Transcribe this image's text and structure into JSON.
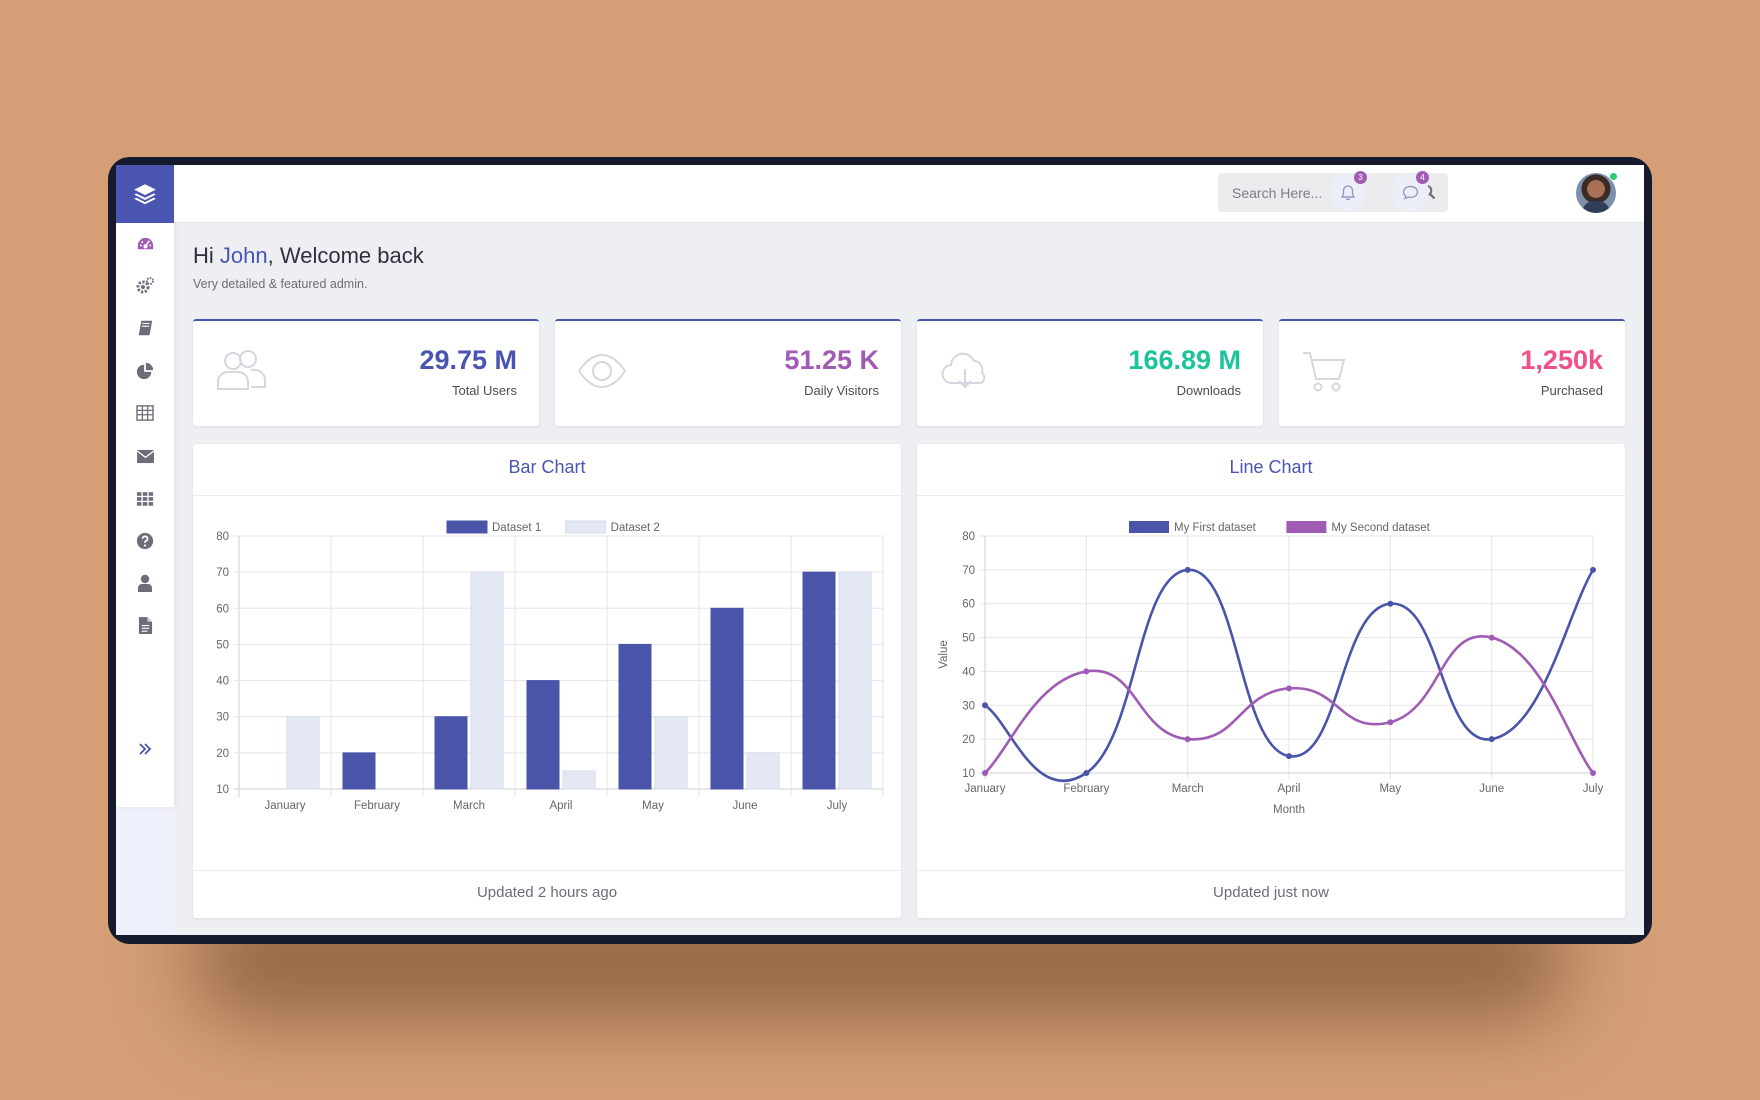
{
  "topbar": {
    "search_placeholder": "Search Here...",
    "notifications_count": "3",
    "messages_count": "4"
  },
  "sidebar": {
    "items": [
      "dashboard-icon",
      "settings-icon",
      "book-icon",
      "pie-chart-icon",
      "table-icon",
      "mail-icon",
      "apps-icon",
      "help-icon",
      "user-icon",
      "document-icon"
    ]
  },
  "welcome": {
    "greeting_prefix": "Hi",
    "name": "John",
    "greeting_suffix": ", Welcome back",
    "subtitle": "Very detailed & featured admin."
  },
  "stats": [
    {
      "value": "29.75 M",
      "label": "Total Users",
      "color": "#4a55b2",
      "icon": "users-icon"
    },
    {
      "value": "51.25 K",
      "label": "Daily Visitors",
      "color": "#a05bb5",
      "icon": "eye-icon"
    },
    {
      "value": "166.89 M",
      "label": "Downloads",
      "color": "#1dc39a",
      "icon": "cloud-download-icon"
    },
    {
      "value": "1,250k",
      "label": "Purchased",
      "color": "#ef4f8b",
      "icon": "cart-icon"
    }
  ],
  "bar_card": {
    "title": "Bar Chart",
    "footer": "Updated 2 hours ago"
  },
  "line_card": {
    "title": "Line Chart",
    "footer": "Updated just now"
  },
  "chart_data": [
    {
      "type": "bar",
      "categories": [
        "January",
        "February",
        "March",
        "April",
        "May",
        "June",
        "July"
      ],
      "series": [
        {
          "name": "Dataset 1",
          "values": [
            10,
            20,
            30,
            40,
            50,
            60,
            70
          ],
          "color": "#4a55aa"
        },
        {
          "name": "Dataset 2",
          "values": [
            30,
            10,
            70,
            15,
            30,
            20,
            70
          ],
          "color": "#e3e8f4"
        }
      ],
      "ylim": [
        10,
        80
      ],
      "yticks": [
        10,
        20,
        30,
        40,
        50,
        60,
        70,
        80
      ],
      "grid": true,
      "legend": "top-center"
    },
    {
      "type": "line",
      "categories": [
        "January",
        "February",
        "March",
        "April",
        "May",
        "June",
        "July"
      ],
      "series": [
        {
          "name": "My First dataset",
          "values": [
            30,
            10,
            70,
            15,
            60,
            20,
            70
          ],
          "color": "#4a55aa"
        },
        {
          "name": "My Second dataset",
          "values": [
            10,
            40,
            20,
            35,
            25,
            50,
            10
          ],
          "color": "#a05bb5"
        }
      ],
      "xlabel": "Month",
      "ylabel": "Value",
      "ylim": [
        10,
        80
      ],
      "yticks": [
        10,
        20,
        30,
        40,
        50,
        60,
        70,
        80
      ],
      "grid": true,
      "legend": "top-center"
    }
  ]
}
